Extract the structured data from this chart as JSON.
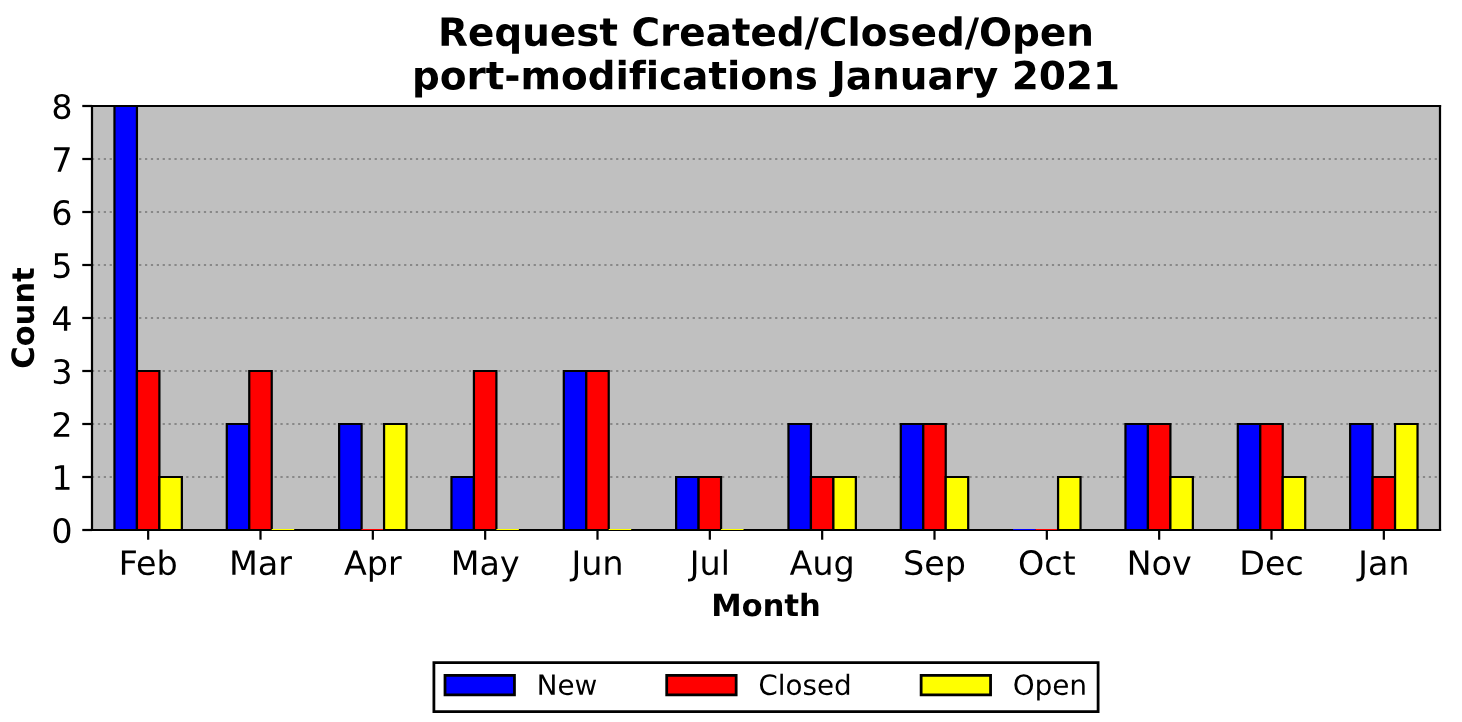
{
  "chart_data": {
    "type": "bar",
    "title": "Request Created/Closed/Open\nport-modifications January 2021",
    "xlabel": "Month",
    "ylabel": "Count",
    "categories": [
      "Feb",
      "Mar",
      "Apr",
      "May",
      "Jun",
      "Jul",
      "Aug",
      "Sep",
      "Oct",
      "Nov",
      "Dec",
      "Jan"
    ],
    "series": [
      {
        "name": "New",
        "color": "#0000ff",
        "values": [
          8,
          2,
          2,
          1,
          3,
          1,
          2,
          2,
          0,
          2,
          2,
          2
        ]
      },
      {
        "name": "Closed",
        "color": "#ff0000",
        "values": [
          3,
          3,
          0,
          3,
          3,
          1,
          1,
          2,
          0,
          2,
          2,
          1
        ]
      },
      {
        "name": "Open",
        "color": "#ffff00",
        "values": [
          1,
          0,
          2,
          0,
          0,
          0,
          1,
          1,
          1,
          1,
          1,
          2
        ]
      }
    ],
    "ylim": [
      0,
      8
    ],
    "yticks": [
      0,
      1,
      2,
      3,
      4,
      5,
      6,
      7,
      8
    ],
    "grid": "y",
    "legend": "bottom"
  }
}
